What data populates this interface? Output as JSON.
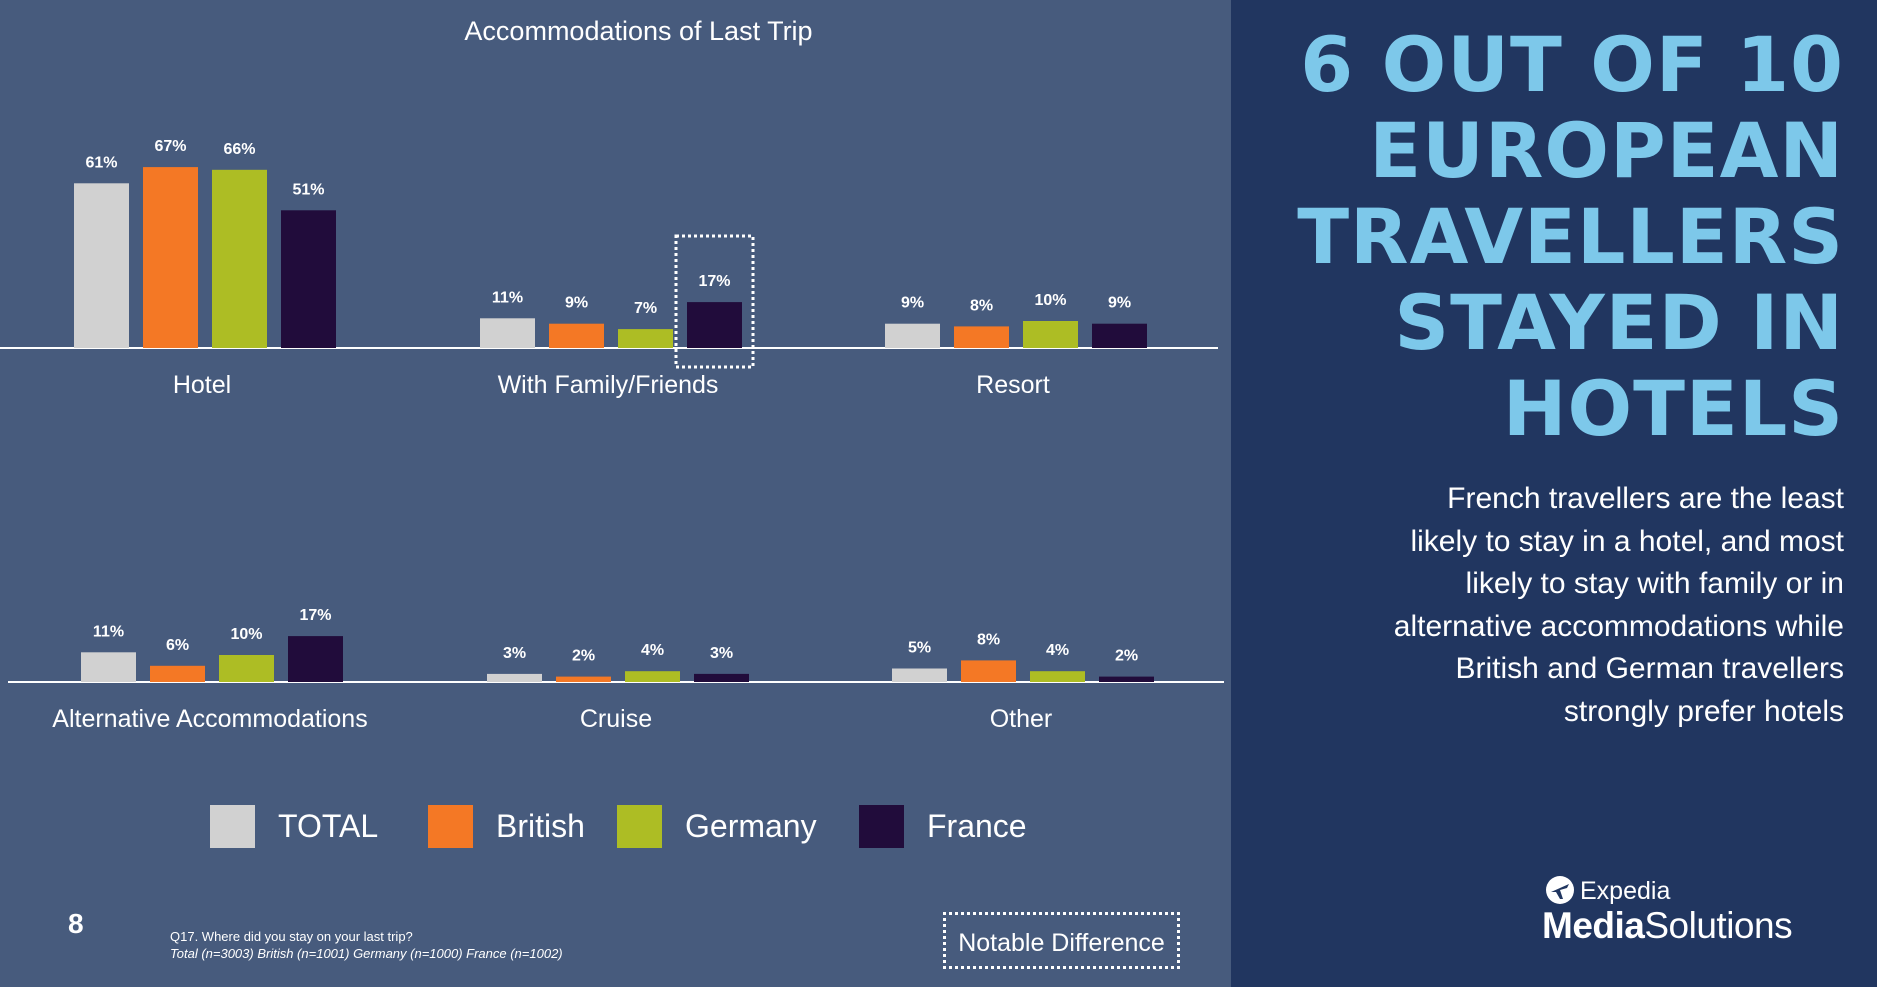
{
  "headline": [
    "6 OUT OF 10",
    "EUROPEAN",
    "TRAVELLERS",
    "STAYED IN",
    "HOTELS"
  ],
  "body_text": [
    "French travellers are the least",
    "likely to stay in a hotel, and most",
    "likely to stay with family or in",
    "alternative accommodations while",
    "British and German travellers",
    "strongly prefer hotels"
  ],
  "page_number": "8",
  "footnote": {
    "question": "Q17. Where did you stay on your last trip?",
    "base": "Total (n=3003) British (n=1001) Germany (n=1000) France (n=1002)"
  },
  "notable_difference_label": "Notable Difference",
  "logo": {
    "top": "Expedia",
    "bottom_bold": "Media",
    "bottom_regular": "Solutions"
  },
  "colors": {
    "background": "#475b7d",
    "panel": "#213660",
    "headline": "#7dc8ea"
  },
  "chart_data": {
    "type": "bar",
    "title": "Accommodations of Last Trip",
    "categories": [
      "Hotel",
      "With Family/Friends",
      "Resort",
      "Alternative Accommodations",
      "Cruise",
      "Other"
    ],
    "series": [
      {
        "name": "TOTAL",
        "color": "#d1d1d1",
        "values": [
          61,
          11,
          9,
          11,
          3,
          5
        ]
      },
      {
        "name": "British",
        "color": "#f47825",
        "values": [
          67,
          9,
          8,
          6,
          2,
          8
        ]
      },
      {
        "name": "Germany",
        "color": "#adbd24",
        "values": [
          66,
          7,
          10,
          10,
          4,
          4
        ]
      },
      {
        "name": "France",
        "color": "#210c3b",
        "values": [
          51,
          17,
          9,
          17,
          3,
          2
        ]
      }
    ],
    "value_suffix": "%",
    "ylim": [
      0,
      100
    ],
    "grid": false,
    "legend_position": "bottom",
    "highlight": {
      "category": "With Family/Friends",
      "series": "France",
      "note": "Notable Difference"
    }
  }
}
